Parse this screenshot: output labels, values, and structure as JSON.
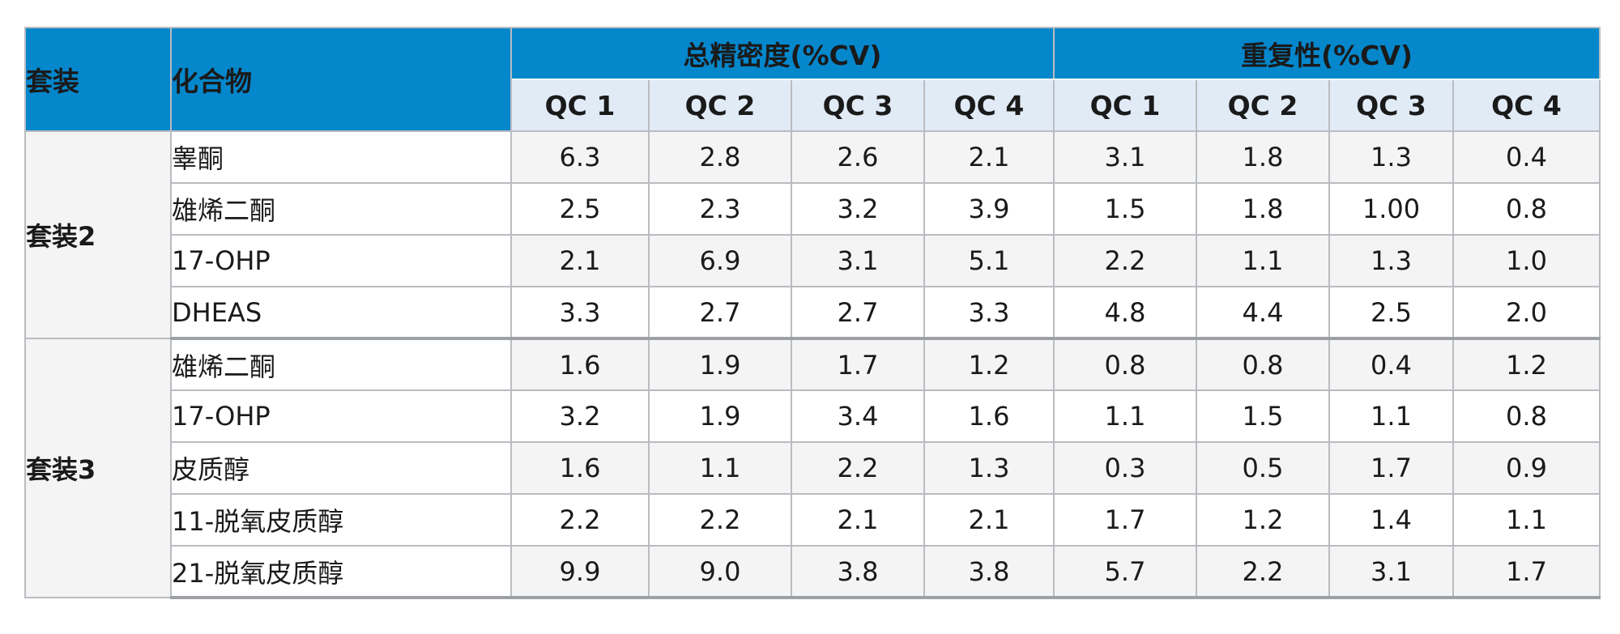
{
  "header": {
    "kit": "套装",
    "compound": "化合物",
    "groups": [
      "总精密度(%CV)",
      "重复性(%CV)"
    ],
    "qc": [
      "QC 1",
      "QC 2",
      "QC 3",
      "QC 4",
      "QC 1",
      "QC 2",
      "QC 3",
      "QC 4"
    ]
  },
  "kits": [
    {
      "name": "套装2",
      "rows": [
        {
          "compound": "睾酮",
          "values": [
            "6.3",
            "2.8",
            "2.6",
            "2.1",
            "3.1",
            "1.8",
            "1.3",
            "0.4"
          ]
        },
        {
          "compound": "雄烯二酮",
          "values": [
            "2.5",
            "2.3",
            "3.2",
            "3.9",
            "1.5",
            "1.8",
            "1.00",
            "0.8"
          ]
        },
        {
          "compound": "17-OHP",
          "values": [
            "2.1",
            "6.9",
            "3.1",
            "5.1",
            "2.2",
            "1.1",
            "1.3",
            "1.0"
          ]
        },
        {
          "compound": "DHEAS",
          "values": [
            "3.3",
            "2.7",
            "2.7",
            "3.3",
            "4.8",
            "4.4",
            "2.5",
            "2.0"
          ]
        }
      ]
    },
    {
      "name": "套装3",
      "rows": [
        {
          "compound": "雄烯二酮",
          "values": [
            "1.6",
            "1.9",
            "1.7",
            "1.2",
            "0.8",
            "0.8",
            "0.4",
            "1.2"
          ]
        },
        {
          "compound": "17-OHP",
          "values": [
            "3.2",
            "1.9",
            "3.4",
            "1.6",
            "1.1",
            "1.5",
            "1.1",
            "0.8"
          ]
        },
        {
          "compound": "皮质醇",
          "values": [
            "1.6",
            "1.1",
            "2.2",
            "1.3",
            "0.3",
            "0.5",
            "1.7",
            "0.9"
          ]
        },
        {
          "compound": "11-脱氧皮质醇",
          "values": [
            "2.2",
            "2.2",
            "2.1",
            "2.1",
            "1.7",
            "1.2",
            "1.4",
            "1.1"
          ]
        },
        {
          "compound": "21-脱氧皮质醇",
          "values": [
            "9.9",
            "9.0",
            "3.8",
            "3.8",
            "5.7",
            "2.2",
            "3.1",
            "1.7"
          ]
        }
      ]
    }
  ]
}
